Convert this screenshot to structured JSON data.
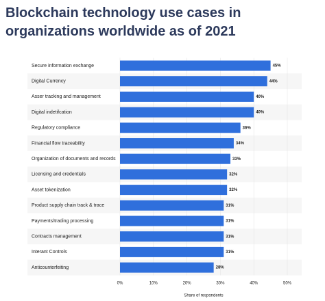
{
  "chart_data": {
    "type": "hbar",
    "title": "Blockchain technology use cases in organizations worldwide as of 2021",
    "categories": [
      "Secure information exchange",
      "Digital Currency",
      "Asser tracking and management",
      "Digital indetifcation",
      "Regulatory compliance",
      "Financial flow traceability",
      "Organization of documents and records",
      "Licensing and credentials",
      "Asset tokenization",
      "Product supply chain track & trace",
      "Payments/trading processing",
      "Contracts management",
      "Interant Controls",
      "Anticounterfeiting"
    ],
    "values": [
      45,
      44,
      40,
      40,
      36,
      34,
      33,
      32,
      32,
      31,
      31,
      31,
      31,
      28
    ],
    "value_labels": [
      "45%",
      "44%",
      "40%",
      "40%",
      "36%",
      "34%",
      "33%",
      "32%",
      "32%",
      "31%",
      "31%",
      "31%",
      "31%",
      "28%"
    ],
    "color": "#2f6fdc",
    "xlabel": "Share of respondents",
    "xlim": [
      0,
      50
    ],
    "xticks": [
      {
        "value": 0,
        "label": "0%"
      },
      {
        "value": 10,
        "label": "10%"
      },
      {
        "value": 20,
        "label": "20%"
      },
      {
        "value": 30,
        "label": "30%"
      },
      {
        "value": 40,
        "label": "40%"
      },
      {
        "value": 50,
        "label": "50%"
      }
    ],
    "grid": true
  }
}
